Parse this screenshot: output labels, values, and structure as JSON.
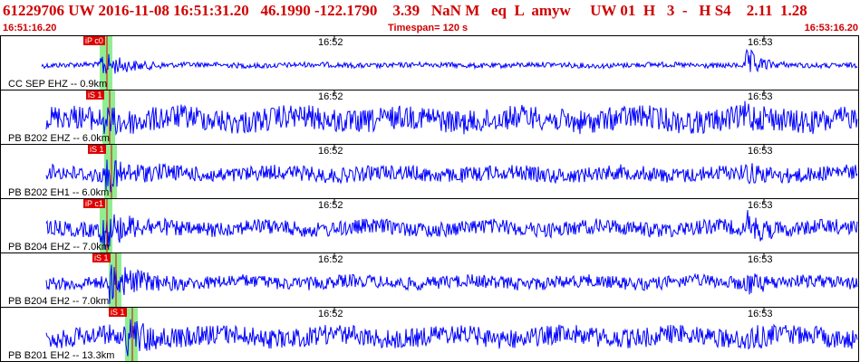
{
  "header": {
    "event_id": "61229706",
    "network": "UW",
    "datetime": "2016-11-08 16:51:31.20",
    "lat": "46.1990",
    "lon": "-122.1790",
    "depth": "3.39",
    "mag_value": "NaN",
    "mag_type": "M",
    "event_type": "eq",
    "location_type": "L",
    "author": "amyw",
    "source": "UW",
    "version": "01",
    "gap_flag": "H",
    "count": "3",
    "dash": "-",
    "quality": "H",
    "s_count": "S4",
    "distance": "2.11",
    "rms": "1.28"
  },
  "subheader": {
    "start_time": "16:51:16.20",
    "timespan": "Timespan= 120 s",
    "end_time": "16:53:16.20"
  },
  "time_ticks": [
    "16:52",
    "16:53"
  ],
  "channels": [
    {
      "label": "CC SEP EHZ -- 0.9km",
      "pick": "iP c0",
      "pick_pos": 0.115,
      "noise": 0.12,
      "event": 0.6,
      "spike2": 0.7
    },
    {
      "label": "PB B202 EHZ -- 6.0km",
      "pick": "iS 1",
      "pick_pos": 0.118,
      "noise": 0.55,
      "event": 0.2,
      "spike2": 0.3
    },
    {
      "label": "PB B202 EH1 -- 6.0km",
      "pick": "iS 1",
      "pick_pos": 0.12,
      "noise": 0.35,
      "event": 0.6,
      "spike2": 0.25
    },
    {
      "label": "PB B204 EHZ -- 7.0km",
      "pick": "iP c1",
      "pick_pos": 0.115,
      "noise": 0.35,
      "event": 0.8,
      "spike2": 0.55
    },
    {
      "label": "PB B204 EH2 -- 7.0km",
      "pick": "iS 1",
      "pick_pos": 0.125,
      "noise": 0.3,
      "event": 0.85,
      "spike2": 0.35
    },
    {
      "label": "PB B201 EH2 -- 13.3km",
      "pick": "iS 1",
      "pick_pos": 0.145,
      "noise": 0.45,
      "event": 0.6,
      "spike2": 0.3
    }
  ],
  "colors": {
    "header_text": "#d00000",
    "trace": "#0000ff",
    "pick": "#e00000",
    "pick_band": "#90ee90"
  }
}
